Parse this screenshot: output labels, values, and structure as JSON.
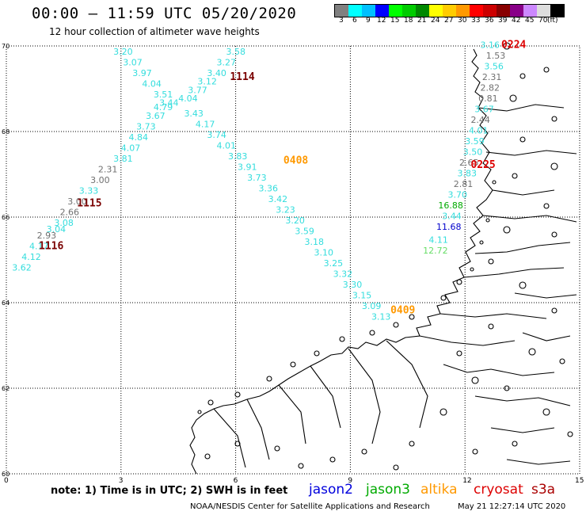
{
  "header": {
    "title": "00:00 – 11:59 UTC 05/20/2020",
    "subtitle": "12 hour collection of altimeter wave heights"
  },
  "legend": {
    "colors": [
      "#808080",
      "#00ffff",
      "#00c0ff",
      "#0000ff",
      "#00ff00",
      "#00cc00",
      "#008800",
      "#ffff00",
      "#ffcc00",
      "#ff9900",
      "#ff0000",
      "#cc0000",
      "#880000",
      "#880088",
      "#cc88ff",
      "#dddddd",
      "#000000"
    ],
    "labels": [
      "3",
      "6",
      "9",
      "12",
      "15",
      "18",
      "21",
      "24",
      "27",
      "30",
      "33",
      "36",
      "39",
      "42",
      "45",
      "70",
      "(ft)"
    ]
  },
  "map": {
    "lat_labels": [
      "70",
      "68",
      "66",
      "64",
      "62",
      "60"
    ],
    "lon_labels": [
      "0",
      "3",
      "6",
      "9",
      "12",
      "15"
    ],
    "colors": {
      "cyan": "#33dddd",
      "gray": "#707070",
      "time_dark": "#7a0000",
      "time_red": "#dd0000",
      "time_orange": "#ff9900",
      "green": "#00aa00",
      "lightgreen": "#66dd66",
      "blue": "#0000cc"
    },
    "time_labels": [
      {
        "text": "1114",
        "color": "time_dark",
        "lon": 5.85,
        "lat": 69.2
      },
      {
        "text": "1115",
        "color": "time_dark",
        "lon": 1.85,
        "lat": 66.25
      },
      {
        "text": "1116",
        "color": "time_dark",
        "lon": 0.85,
        "lat": 65.25
      },
      {
        "text": "0408",
        "color": "time_orange",
        "lon": 7.25,
        "lat": 67.25
      },
      {
        "text": "0409",
        "color": "time_orange",
        "lon": 10.05,
        "lat": 63.75
      },
      {
        "text": "0224",
        "color": "time_red",
        "lon": 12.95,
        "lat": 69.95
      },
      {
        "text": "0225",
        "color": "time_red",
        "lon": 12.15,
        "lat": 67.15
      }
    ],
    "observations": [
      {
        "v": "3.20",
        "c": "cyan",
        "lon": 2.8,
        "lat": 69.8
      },
      {
        "v": "3.07",
        "c": "cyan",
        "lon": 3.05,
        "lat": 69.55
      },
      {
        "v": "3.97",
        "c": "cyan",
        "lon": 3.3,
        "lat": 69.3
      },
      {
        "v": "4.04",
        "c": "cyan",
        "lon": 3.55,
        "lat": 69.05
      },
      {
        "v": "3.51",
        "c": "cyan",
        "lon": 3.85,
        "lat": 68.8
      },
      {
        "v": "3.44",
        "c": "cyan",
        "lon": 4.0,
        "lat": 68.6
      },
      {
        "v": "4.79",
        "c": "cyan",
        "lon": 3.85,
        "lat": 68.5
      },
      {
        "v": "3.67",
        "c": "cyan",
        "lon": 3.65,
        "lat": 68.3
      },
      {
        "v": "3.73",
        "c": "cyan",
        "lon": 3.4,
        "lat": 68.05
      },
      {
        "v": "4.84",
        "c": "cyan",
        "lon": 3.2,
        "lat": 67.8
      },
      {
        "v": "4.07",
        "c": "cyan",
        "lon": 3.0,
        "lat": 67.55
      },
      {
        "v": "3.81",
        "c": "cyan",
        "lon": 2.8,
        "lat": 67.3
      },
      {
        "v": "2.31",
        "c": "gray",
        "lon": 2.4,
        "lat": 67.05
      },
      {
        "v": "3.00",
        "c": "gray",
        "lon": 2.2,
        "lat": 66.8
      },
      {
        "v": "3.33",
        "c": "cyan",
        "lon": 1.9,
        "lat": 66.55
      },
      {
        "v": "3.00",
        "c": "gray",
        "lon": 1.6,
        "lat": 66.3
      },
      {
        "v": "2.66",
        "c": "gray",
        "lon": 1.4,
        "lat": 66.05
      },
      {
        "v": "3.08",
        "c": "cyan",
        "lon": 1.25,
        "lat": 65.8
      },
      {
        "v": "3.04",
        "c": "cyan",
        "lon": 1.05,
        "lat": 65.65
      },
      {
        "v": "2.93",
        "c": "gray",
        "lon": 0.8,
        "lat": 65.5
      },
      {
        "v": "4.17",
        "c": "cyan",
        "lon": 0.6,
        "lat": 65.25
      },
      {
        "v": "4.12",
        "c": "cyan",
        "lon": 0.4,
        "lat": 65.0
      },
      {
        "v": "3.62",
        "c": "cyan",
        "lon": 0.15,
        "lat": 64.75
      },
      {
        "v": "3.58",
        "c": "cyan",
        "lon": 5.75,
        "lat": 69.8
      },
      {
        "v": "3.27",
        "c": "cyan",
        "lon": 5.5,
        "lat": 69.55
      },
      {
        "v": "3.40",
        "c": "cyan",
        "lon": 5.25,
        "lat": 69.3
      },
      {
        "v": "3.12",
        "c": "cyan",
        "lon": 5.0,
        "lat": 69.1
      },
      {
        "v": "3.77",
        "c": "cyan",
        "lon": 4.75,
        "lat": 68.9
      },
      {
        "v": "4.04",
        "c": "cyan",
        "lon": 4.5,
        "lat": 68.7
      },
      {
        "v": "3.43",
        "c": "cyan",
        "lon": 4.65,
        "lat": 68.35
      },
      {
        "v": "4.17",
        "c": "cyan",
        "lon": 4.95,
        "lat": 68.1
      },
      {
        "v": "3.74",
        "c": "cyan",
        "lon": 5.25,
        "lat": 67.85
      },
      {
        "v": "4.01",
        "c": "cyan",
        "lon": 5.5,
        "lat": 67.6
      },
      {
        "v": "3.83",
        "c": "cyan",
        "lon": 5.8,
        "lat": 67.35
      },
      {
        "v": "3.91",
        "c": "cyan",
        "lon": 6.05,
        "lat": 67.1
      },
      {
        "v": "3.73",
        "c": "cyan",
        "lon": 6.3,
        "lat": 66.85
      },
      {
        "v": "3.36",
        "c": "cyan",
        "lon": 6.6,
        "lat": 66.6
      },
      {
        "v": "3.42",
        "c": "cyan",
        "lon": 6.85,
        "lat": 66.35
      },
      {
        "v": "3.23",
        "c": "cyan",
        "lon": 7.05,
        "lat": 66.1
      },
      {
        "v": "3.20",
        "c": "cyan",
        "lon": 7.3,
        "lat": 65.85
      },
      {
        "v": "3.59",
        "c": "cyan",
        "lon": 7.55,
        "lat": 65.6
      },
      {
        "v": "3.18",
        "c": "cyan",
        "lon": 7.8,
        "lat": 65.35
      },
      {
        "v": "3.10",
        "c": "cyan",
        "lon": 8.05,
        "lat": 65.1
      },
      {
        "v": "3.25",
        "c": "cyan",
        "lon": 8.3,
        "lat": 64.85
      },
      {
        "v": "3.32",
        "c": "cyan",
        "lon": 8.55,
        "lat": 64.6
      },
      {
        "v": "3.30",
        "c": "cyan",
        "lon": 8.8,
        "lat": 64.35
      },
      {
        "v": "3.15",
        "c": "cyan",
        "lon": 9.05,
        "lat": 64.1
      },
      {
        "v": "3.09",
        "c": "cyan",
        "lon": 9.3,
        "lat": 63.85
      },
      {
        "v": "3.13",
        "c": "cyan",
        "lon": 9.55,
        "lat": 63.6
      },
      {
        "v": "3.16",
        "c": "cyan",
        "lon": 12.4,
        "lat": 69.95
      },
      {
        "v": "1.53",
        "c": "gray",
        "lon": 12.55,
        "lat": 69.7
      },
      {
        "v": "3.56",
        "c": "cyan",
        "lon": 12.5,
        "lat": 69.45
      },
      {
        "v": "2.31",
        "c": "gray",
        "lon": 12.45,
        "lat": 69.2
      },
      {
        "v": "2.82",
        "c": "gray",
        "lon": 12.4,
        "lat": 68.95
      },
      {
        "v": "0.81",
        "c": "gray",
        "lon": 12.35,
        "lat": 68.7
      },
      {
        "v": "3.67",
        "c": "cyan",
        "lon": 12.25,
        "lat": 68.45
      },
      {
        "v": "2.44",
        "c": "gray",
        "lon": 12.15,
        "lat": 68.2
      },
      {
        "v": "4.01",
        "c": "cyan",
        "lon": 12.1,
        "lat": 67.95
      },
      {
        "v": "3.59",
        "c": "cyan",
        "lon": 12.0,
        "lat": 67.7
      },
      {
        "v": "3.50",
        "c": "cyan",
        "lon": 11.95,
        "lat": 67.45
      },
      {
        "v": "2.65",
        "c": "gray",
        "lon": 11.85,
        "lat": 67.2
      },
      {
        "v": "3.83",
        "c": "cyan",
        "lon": 11.8,
        "lat": 66.95
      },
      {
        "v": "2.81",
        "c": "gray",
        "lon": 11.7,
        "lat": 66.7
      },
      {
        "v": "3.70",
        "c": "cyan",
        "lon": 11.55,
        "lat": 66.45
      },
      {
        "v": "16.88",
        "c": "green",
        "lon": 11.3,
        "lat": 66.2
      },
      {
        "v": "3.44",
        "c": "cyan",
        "lon": 11.4,
        "lat": 65.95
      },
      {
        "v": "11.68",
        "c": "blue",
        "lon": 11.25,
        "lat": 65.7
      },
      {
        "v": "4.11",
        "c": "cyan",
        "lon": 11.05,
        "lat": 65.4
      },
      {
        "v": "12.72",
        "c": "lightgreen",
        "lon": 10.9,
        "lat": 65.15
      }
    ]
  },
  "notes": {
    "text": "note: 1) Time is in UTC; 2) SWH is in feet",
    "satellites": [
      {
        "name": "jason2",
        "color": "#0000dd"
      },
      {
        "name": "jason3",
        "color": "#00aa00"
      },
      {
        "name": "altika",
        "color": "#ff9900"
      },
      {
        "name": "cryosat",
        "color": "#dd0000"
      },
      {
        "name": "s3a",
        "color": "#aa0000"
      }
    ]
  },
  "footer": {
    "credit": "NOAA/NESDIS Center for Satellite Applications and Research",
    "timestamp": "May 21 12:27:14 UTC 2020"
  }
}
